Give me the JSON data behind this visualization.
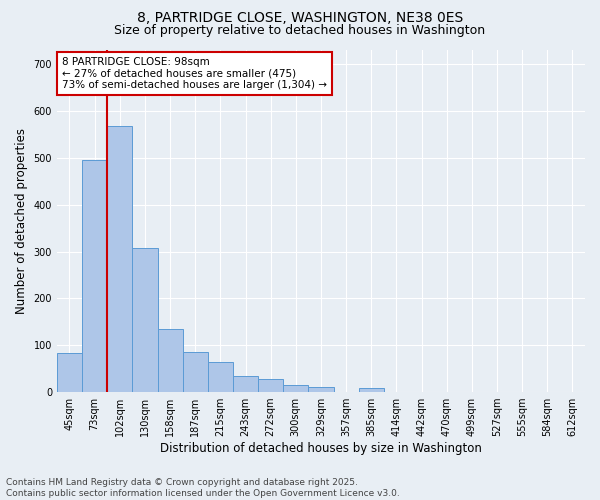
{
  "title_line1": "8, PARTRIDGE CLOSE, WASHINGTON, NE38 0ES",
  "title_line2": "Size of property relative to detached houses in Washington",
  "xlabel": "Distribution of detached houses by size in Washington",
  "ylabel": "Number of detached properties",
  "categories": [
    "45sqm",
    "73sqm",
    "102sqm",
    "130sqm",
    "158sqm",
    "187sqm",
    "215sqm",
    "243sqm",
    "272sqm",
    "300sqm",
    "329sqm",
    "357sqm",
    "385sqm",
    "414sqm",
    "442sqm",
    "470sqm",
    "499sqm",
    "527sqm",
    "555sqm",
    "584sqm",
    "612sqm"
  ],
  "values": [
    83,
    495,
    567,
    308,
    135,
    85,
    65,
    35,
    28,
    15,
    10,
    0,
    8,
    0,
    0,
    0,
    0,
    0,
    0,
    0,
    0
  ],
  "bar_color": "#aec6e8",
  "bar_edge_color": "#5b9bd5",
  "vline_index": 2,
  "vline_color": "#cc0000",
  "annotation_text": "8 PARTRIDGE CLOSE: 98sqm\n← 27% of detached houses are smaller (475)\n73% of semi-detached houses are larger (1,304) →",
  "annotation_box_color": "#ffffff",
  "annotation_box_edge_color": "#cc0000",
  "ylim": [
    0,
    730
  ],
  "yticks": [
    0,
    100,
    200,
    300,
    400,
    500,
    600,
    700
  ],
  "background_color": "#e8eef4",
  "grid_color": "#ffffff",
  "footer_line1": "Contains HM Land Registry data © Crown copyright and database right 2025.",
  "footer_line2": "Contains public sector information licensed under the Open Government Licence v3.0.",
  "title_fontsize": 10,
  "subtitle_fontsize": 9,
  "axis_label_fontsize": 8.5,
  "tick_fontsize": 7,
  "annotation_fontsize": 7.5,
  "footer_fontsize": 6.5
}
